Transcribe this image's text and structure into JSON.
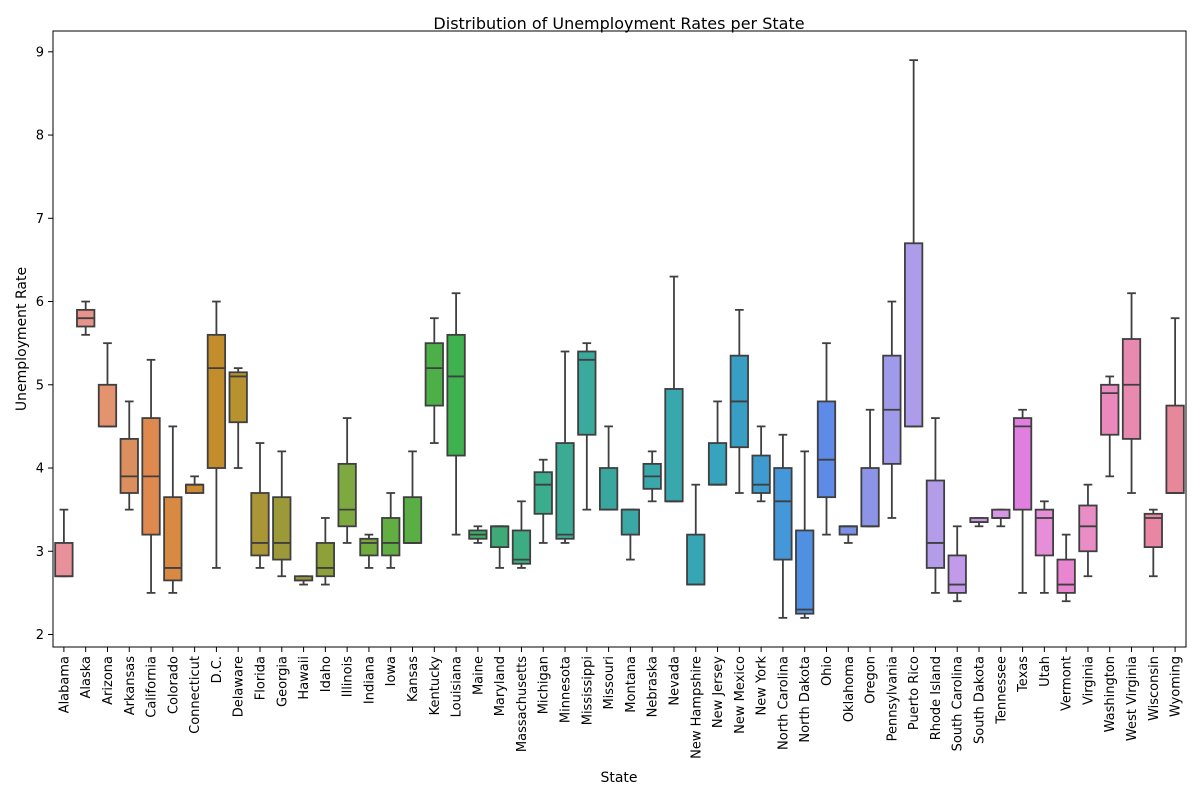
{
  "chart_data": {
    "type": "box",
    "title": "Distribution of Unemployment Rates per State",
    "xlabel": "State",
    "ylabel": "Unemployment Rate",
    "ylim": [
      1.85,
      9.25
    ],
    "yticks": [
      2,
      3,
      4,
      5,
      6,
      7,
      8,
      9
    ],
    "grid": false,
    "box_edge_color": "#3f3f3f",
    "categories": [
      "Alabama",
      "Alaska",
      "Arizona",
      "Arkansas",
      "California",
      "Colorado",
      "Connecticut",
      "D.C.",
      "Delaware",
      "Florida",
      "Georgia",
      "Hawaii",
      "Idaho",
      "Illinois",
      "Indiana",
      "Iowa",
      "Kansas",
      "Kentucky",
      "Louisiana",
      "Maine",
      "Maryland",
      "Massachusetts",
      "Michigan",
      "Minnesota",
      "Mississippi",
      "Missouri",
      "Montana",
      "Nebraska",
      "Nevada",
      "New Hampshire",
      "New Jersey",
      "New Mexico",
      "New York",
      "North Carolina",
      "North Dakota",
      "Ohio",
      "Oklahoma",
      "Oregon",
      "Pennsylvania",
      "Puerto Rico",
      "Rhode Island",
      "South Carolina",
      "South Dakota",
      "Tennessee",
      "Texas",
      "Utah",
      "Vermont",
      "Virginia",
      "Washington",
      "West Virginia",
      "Wisconsin",
      "Wyoming"
    ],
    "colors": [
      "#e8919b",
      "#e8928c",
      "#e3946e",
      "#db8e5e",
      "#e0894f",
      "#d88a43",
      "#ce8a33",
      "#c38d2c",
      "#b8922e",
      "#aa9636",
      "#9c9a38",
      "#969a3a",
      "#8ea139",
      "#7ea840",
      "#72aa3d",
      "#63ae42",
      "#59ae44",
      "#4caf47",
      "#3fb14f",
      "#3cae65",
      "#3daa77",
      "#3dac82",
      "#3aad8c",
      "#3bab94",
      "#39aa9c",
      "#3aa79e",
      "#3ba8a5",
      "#38a8aa",
      "#38a8ae",
      "#36a6b5",
      "#38a3bc",
      "#399ec4",
      "#3e9bcf",
      "#4497d8",
      "#5090e2",
      "#5e8be7",
      "#7b90e6",
      "#8d93e7",
      "#a09aea",
      "#ad9ce9",
      "#b59ce9",
      "#c39aea",
      "#ce97e6",
      "#d796e3",
      "#e07fdf",
      "#e78ed9",
      "#ea86d1",
      "#e98dc6",
      "#ea89bb",
      "#e889b0",
      "#e886a4",
      "#e7889a"
    ],
    "boxes": [
      {
        "whislo": 2.7,
        "q1": 2.7,
        "med": 2.7,
        "q3": 3.1,
        "whishi": 3.5
      },
      {
        "whislo": 5.6,
        "q1": 5.7,
        "med": 5.8,
        "q3": 5.9,
        "whishi": 6.0
      },
      {
        "whislo": 4.5,
        "q1": 4.5,
        "med": 4.5,
        "q3": 5.0,
        "whishi": 5.5
      },
      {
        "whislo": 3.5,
        "q1": 3.7,
        "med": 3.9,
        "q3": 4.35,
        "whishi": 4.8
      },
      {
        "whislo": 2.5,
        "q1": 3.2,
        "med": 3.9,
        "q3": 4.6,
        "whishi": 5.3
      },
      {
        "whislo": 2.5,
        "q1": 2.65,
        "med": 2.8,
        "q3": 3.65,
        "whishi": 4.5
      },
      {
        "whislo": 3.7,
        "q1": 3.7,
        "med": 3.8,
        "q3": 3.8,
        "whishi": 3.9
      },
      {
        "whislo": 2.8,
        "q1": 4.0,
        "med": 5.2,
        "q3": 5.6,
        "whishi": 6.0
      },
      {
        "whislo": 4.0,
        "q1": 4.55,
        "med": 5.1,
        "q3": 5.15,
        "whishi": 5.2
      },
      {
        "whislo": 2.8,
        "q1": 2.95,
        "med": 3.1,
        "q3": 3.7,
        "whishi": 4.3
      },
      {
        "whislo": 2.7,
        "q1": 2.9,
        "med": 3.1,
        "q3": 3.65,
        "whishi": 4.2
      },
      {
        "whislo": 2.6,
        "q1": 2.65,
        "med": 2.65,
        "q3": 2.7,
        "whishi": 2.7
      },
      {
        "whislo": 2.6,
        "q1": 2.7,
        "med": 2.8,
        "q3": 3.1,
        "whishi": 3.4
      },
      {
        "whislo": 3.1,
        "q1": 3.3,
        "med": 3.5,
        "q3": 4.05,
        "whishi": 4.6
      },
      {
        "whislo": 2.8,
        "q1": 2.95,
        "med": 3.1,
        "q3": 3.15,
        "whishi": 3.2
      },
      {
        "whislo": 2.8,
        "q1": 2.95,
        "med": 3.1,
        "q3": 3.4,
        "whishi": 3.7
      },
      {
        "whislo": 3.1,
        "q1": 3.1,
        "med": 3.1,
        "q3": 3.65,
        "whishi": 4.2
      },
      {
        "whislo": 4.3,
        "q1": 4.75,
        "med": 5.2,
        "q3": 5.5,
        "whishi": 5.8
      },
      {
        "whislo": 3.2,
        "q1": 4.15,
        "med": 5.1,
        "q3": 5.6,
        "whishi": 6.1
      },
      {
        "whislo": 3.1,
        "q1": 3.15,
        "med": 3.2,
        "q3": 3.25,
        "whishi": 3.3
      },
      {
        "whislo": 2.8,
        "q1": 3.05,
        "med": 3.3,
        "q3": 3.3,
        "whishi": 3.3
      },
      {
        "whislo": 2.8,
        "q1": 2.85,
        "med": 2.9,
        "q3": 3.25,
        "whishi": 3.6
      },
      {
        "whislo": 3.1,
        "q1": 3.45,
        "med": 3.8,
        "q3": 3.95,
        "whishi": 4.1
      },
      {
        "whislo": 3.1,
        "q1": 3.15,
        "med": 3.2,
        "q3": 4.3,
        "whishi": 5.4
      },
      {
        "whislo": 3.5,
        "q1": 4.4,
        "med": 5.3,
        "q3": 5.4,
        "whishi": 5.5
      },
      {
        "whislo": 3.5,
        "q1": 3.5,
        "med": 3.5,
        "q3": 4.0,
        "whishi": 4.5
      },
      {
        "whislo": 2.9,
        "q1": 3.2,
        "med": 3.5,
        "q3": 3.5,
        "whishi": 3.5
      },
      {
        "whislo": 3.6,
        "q1": 3.75,
        "med": 3.9,
        "q3": 4.05,
        "whishi": 4.2
      },
      {
        "whislo": 3.6,
        "q1": 3.6,
        "med": 3.6,
        "q3": 4.95,
        "whishi": 6.3
      },
      {
        "whislo": 2.6,
        "q1": 2.6,
        "med": 2.6,
        "q3": 3.2,
        "whishi": 3.8
      },
      {
        "whislo": 3.8,
        "q1": 3.8,
        "med": 3.8,
        "q3": 4.3,
        "whishi": 4.8
      },
      {
        "whislo": 3.7,
        "q1": 4.25,
        "med": 4.8,
        "q3": 5.35,
        "whishi": 5.9
      },
      {
        "whislo": 3.6,
        "q1": 3.7,
        "med": 3.8,
        "q3": 4.15,
        "whishi": 4.5
      },
      {
        "whislo": 2.2,
        "q1": 2.9,
        "med": 3.6,
        "q3": 4.0,
        "whishi": 4.4
      },
      {
        "whislo": 2.2,
        "q1": 2.25,
        "med": 2.3,
        "q3": 3.25,
        "whishi": 4.2
      },
      {
        "whislo": 3.2,
        "q1": 3.65,
        "med": 4.1,
        "q3": 4.8,
        "whishi": 5.5
      },
      {
        "whislo": 3.1,
        "q1": 3.2,
        "med": 3.3,
        "q3": 3.3,
        "whishi": 3.3
      },
      {
        "whislo": 3.3,
        "q1": 3.3,
        "med": 3.3,
        "q3": 4.0,
        "whishi": 4.7
      },
      {
        "whislo": 3.4,
        "q1": 4.05,
        "med": 4.7,
        "q3": 5.35,
        "whishi": 6.0
      },
      {
        "whislo": 4.5,
        "q1": 4.5,
        "med": 4.5,
        "q3": 6.7,
        "whishi": 8.9
      },
      {
        "whislo": 2.5,
        "q1": 2.8,
        "med": 3.1,
        "q3": 3.85,
        "whishi": 4.6
      },
      {
        "whislo": 2.4,
        "q1": 2.5,
        "med": 2.6,
        "q3": 2.95,
        "whishi": 3.3
      },
      {
        "whislo": 3.3,
        "q1": 3.35,
        "med": 3.35,
        "q3": 3.4,
        "whishi": 3.4
      },
      {
        "whislo": 3.3,
        "q1": 3.4,
        "med": 3.4,
        "q3": 3.5,
        "whishi": 3.5
      },
      {
        "whislo": 2.5,
        "q1": 3.5,
        "med": 4.5,
        "q3": 4.6,
        "whishi": 4.7
      },
      {
        "whislo": 2.5,
        "q1": 2.95,
        "med": 3.4,
        "q3": 3.5,
        "whishi": 3.6
      },
      {
        "whislo": 2.4,
        "q1": 2.5,
        "med": 2.6,
        "q3": 2.9,
        "whishi": 3.2
      },
      {
        "whislo": 2.7,
        "q1": 3.0,
        "med": 3.3,
        "q3": 3.55,
        "whishi": 3.8
      },
      {
        "whislo": 3.9,
        "q1": 4.4,
        "med": 4.9,
        "q3": 5.0,
        "whishi": 5.1
      },
      {
        "whislo": 3.7,
        "q1": 4.35,
        "med": 5.0,
        "q3": 5.55,
        "whishi": 6.1
      },
      {
        "whislo": 2.7,
        "q1": 3.05,
        "med": 3.4,
        "q3": 3.45,
        "whishi": 3.5
      },
      {
        "whislo": 3.7,
        "q1": 3.7,
        "med": 3.7,
        "q3": 4.75,
        "whishi": 5.8
      }
    ]
  }
}
